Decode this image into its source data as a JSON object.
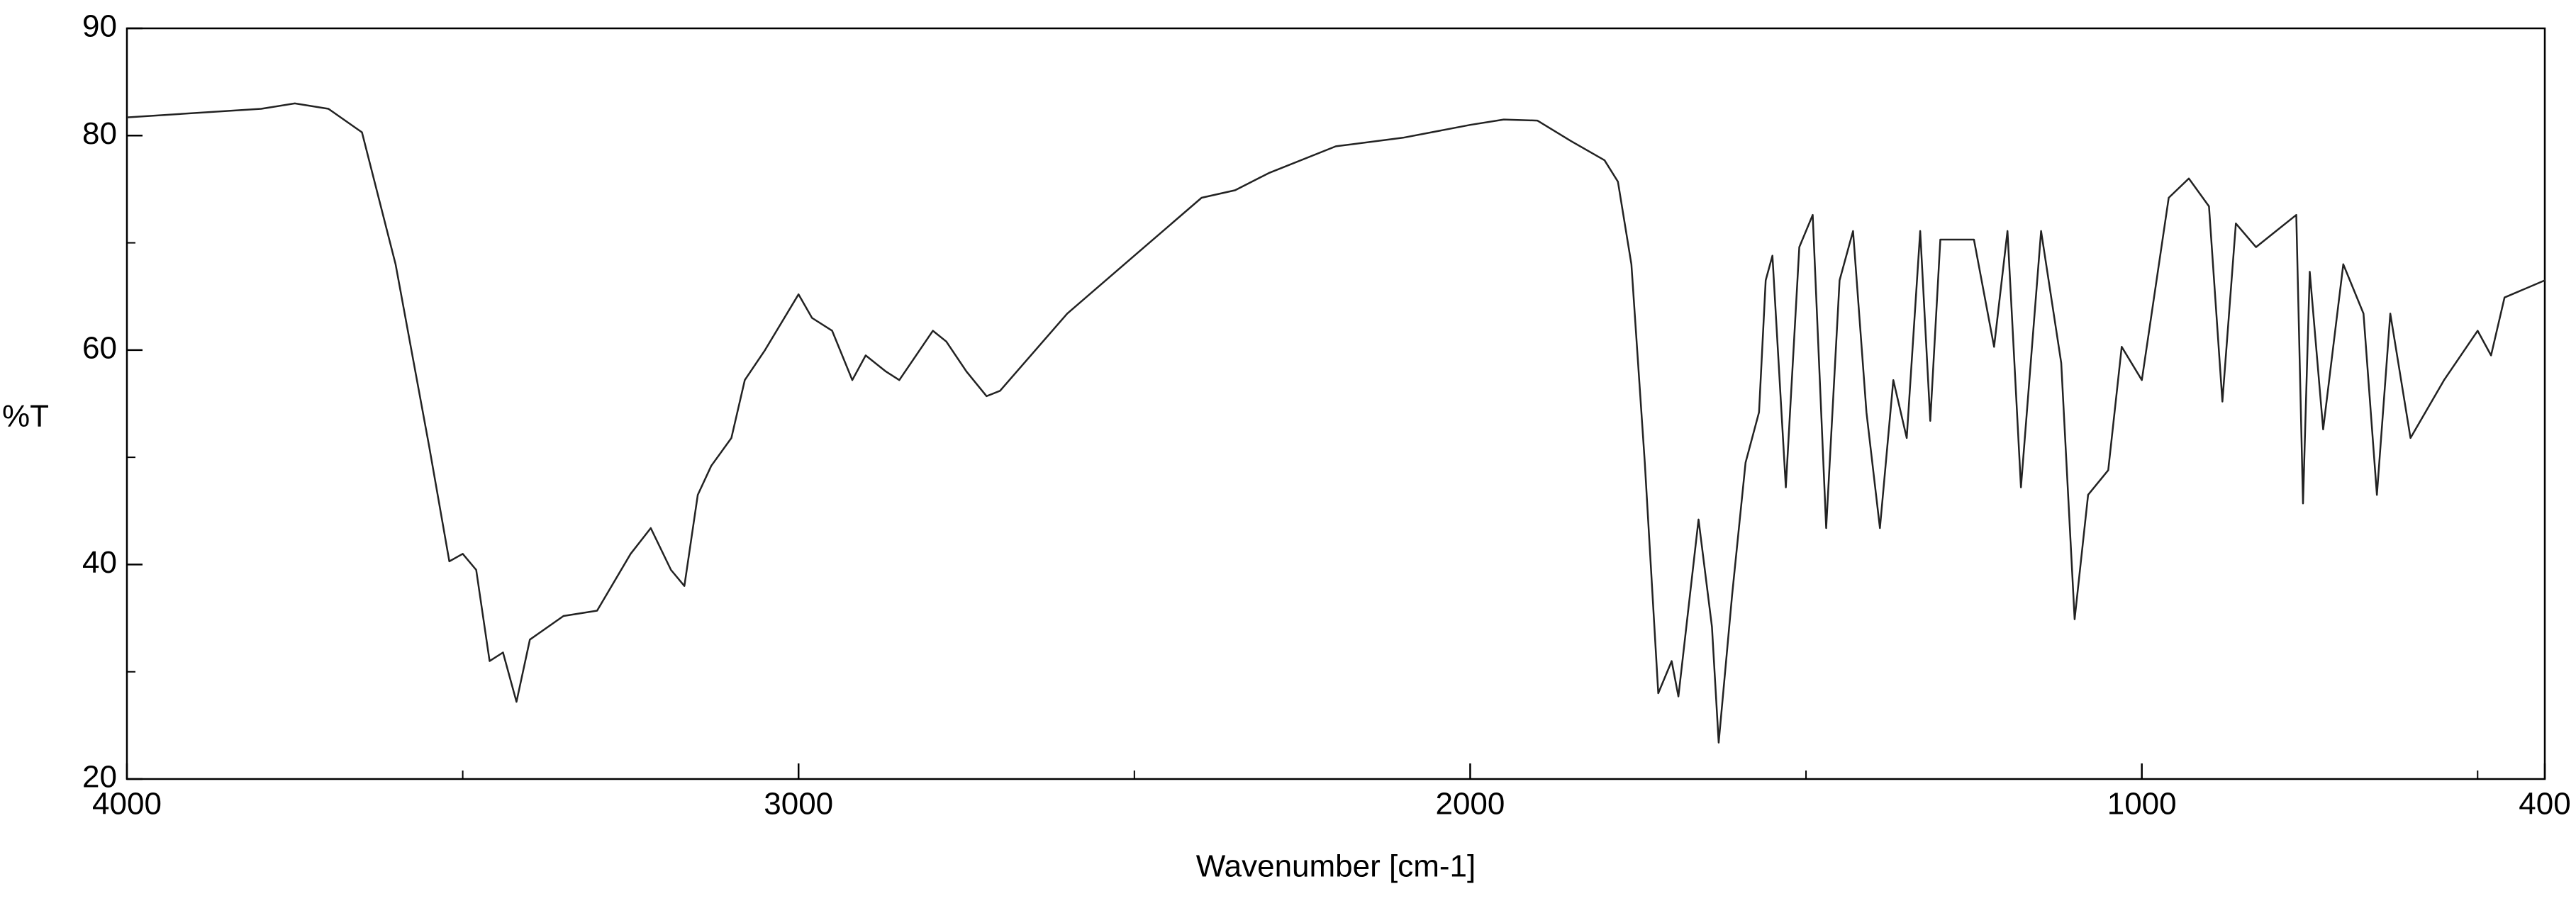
{
  "chart_data": {
    "type": "line",
    "xlabel": "Wavenumber [cm-1]",
    "ylabel": "%T",
    "xlim": [
      4000,
      400
    ],
    "ylim": [
      20,
      90
    ],
    "xticks": [
      4000,
      3000,
      2000,
      1000,
      400
    ],
    "xticks_minor": [
      3500,
      2500,
      1500,
      500
    ],
    "yticks": [
      20,
      40,
      60,
      80,
      90
    ],
    "yticks_minor": [
      30,
      50,
      70
    ],
    "grid": false,
    "series": [
      {
        "color": "#222222",
        "x": [
          4000,
          3800,
          3750,
          3700,
          3650,
          3600,
          3550,
          3520,
          3500,
          3480,
          3460,
          3440,
          3420,
          3400,
          3350,
          3300,
          3250,
          3220,
          3190,
          3170,
          3150,
          3130,
          3100,
          3080,
          3050,
          3000,
          2980,
          2950,
          2920,
          2900,
          2870,
          2850,
          2800,
          2780,
          2750,
          2720,
          2700,
          2600,
          2500,
          2400,
          2350,
          2300,
          2200,
          2100,
          2000,
          1950,
          1900,
          1850,
          1800,
          1780,
          1760,
          1740,
          1720,
          1700,
          1690,
          1660,
          1640,
          1630,
          1610,
          1590,
          1570,
          1560,
          1550,
          1530,
          1510,
          1490,
          1470,
          1450,
          1430,
          1410,
          1390,
          1370,
          1350,
          1330,
          1315,
          1300,
          1250,
          1220,
          1200,
          1180,
          1150,
          1120,
          1100,
          1080,
          1050,
          1030,
          1000,
          960,
          930,
          900,
          880,
          860,
          830,
          800,
          770,
          760,
          750,
          730,
          700,
          670,
          650,
          630,
          600,
          550,
          500,
          480,
          460,
          400
        ],
        "values": [
          81.7,
          82.5,
          83,
          82.5,
          80.3,
          68,
          51,
          40.3,
          41,
          39.5,
          31,
          31.8,
          27.2,
          33,
          35.2,
          35.7,
          41,
          43.4,
          39.5,
          38,
          46.5,
          49.2,
          51.8,
          57.2,
          60,
          65.2,
          63,
          61.8,
          57.2,
          59.5,
          58,
          57.2,
          61.8,
          60.8,
          58,
          55.7,
          56.2,
          63.4,
          68.8,
          74.2,
          74.9,
          76.5,
          79,
          79.8,
          81,
          81.5,
          81.4,
          79.5,
          77.7,
          75.7,
          68,
          49.5,
          28,
          31,
          27.7,
          44.2,
          34.2,
          23.4,
          37.2,
          49.5,
          54.2,
          66.5,
          68.8,
          47.2,
          69.6,
          72.6,
          43.4,
          66.5,
          71.1,
          54.2,
          43.4,
          57.2,
          51.8,
          71.1,
          53.4,
          70.3,
          70.3,
          60.3,
          71.1,
          47.2,
          71.1,
          58.8,
          34.9,
          46.5,
          48.8,
          60.3,
          57.2,
          74.2,
          76,
          73.4,
          55.2,
          71.8,
          69.6,
          71.1,
          72.6,
          45.7,
          67.3,
          52.6,
          68,
          63.4,
          46.5,
          63.4,
          51.8,
          57.2,
          61.8,
          59.5,
          64.9,
          66.5
        ]
      }
    ]
  }
}
